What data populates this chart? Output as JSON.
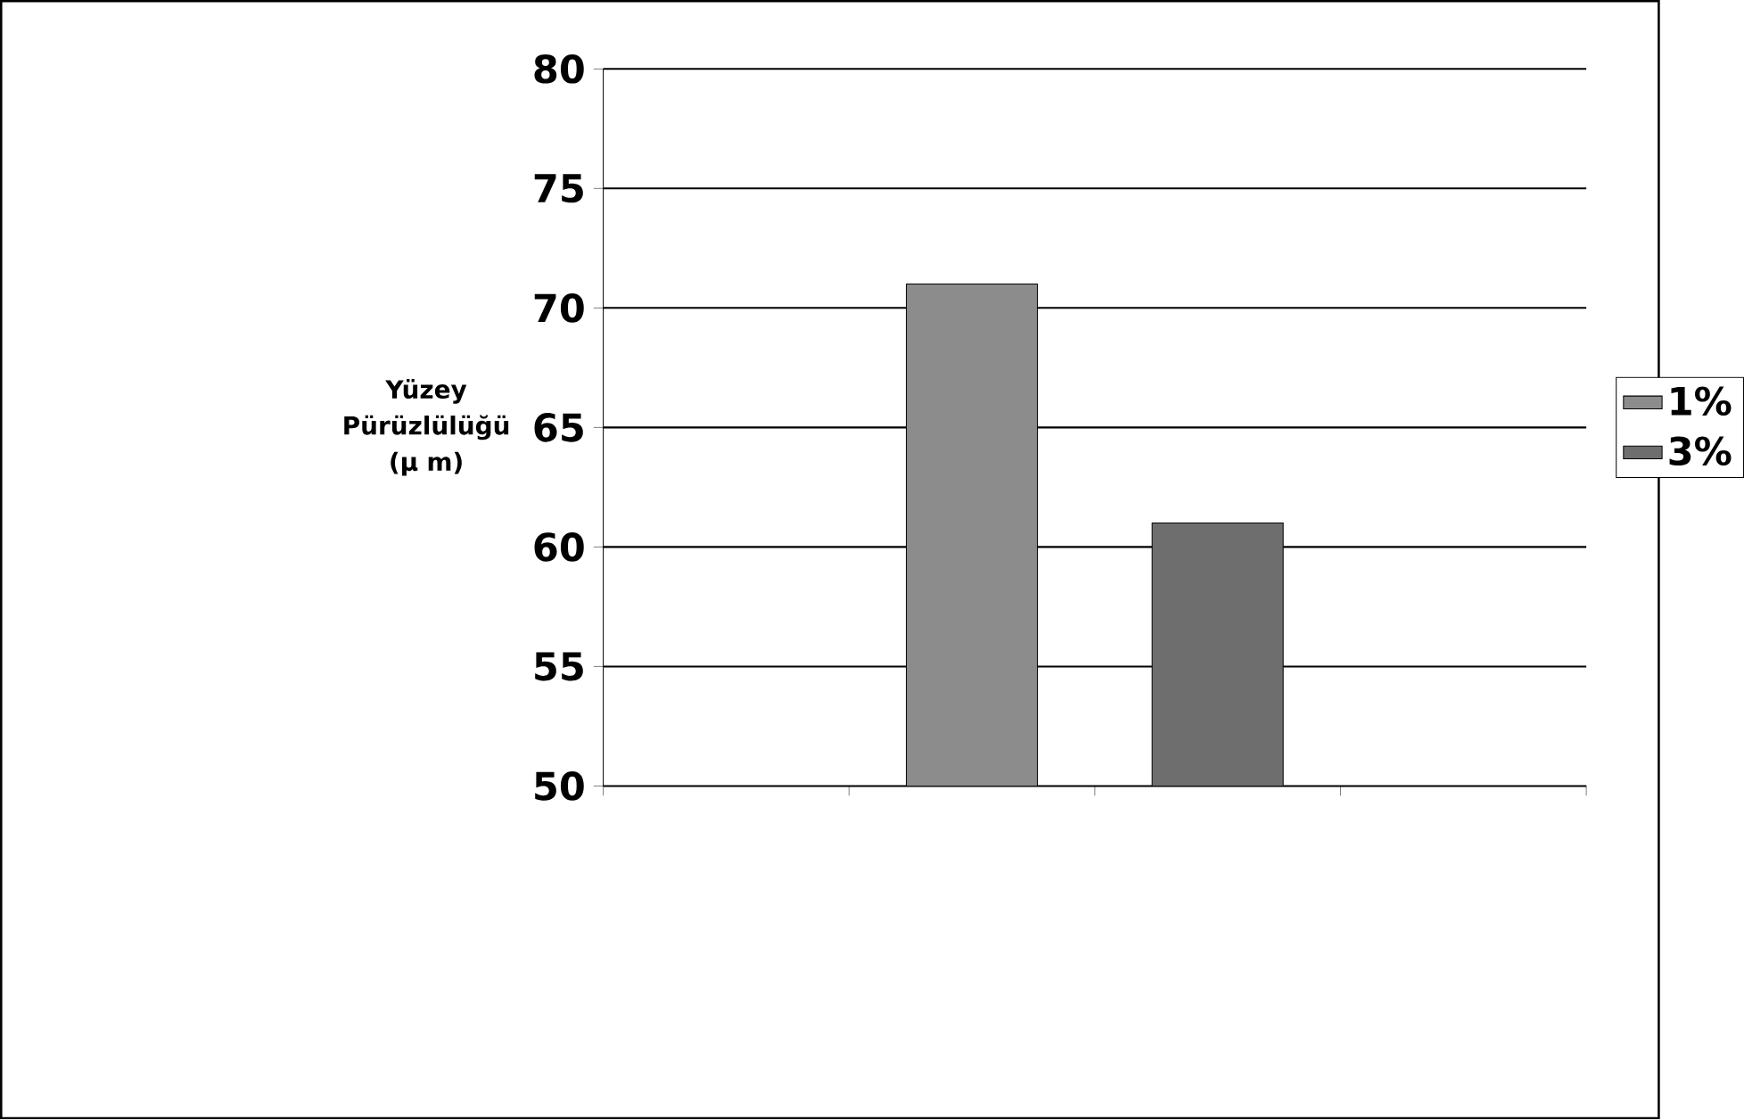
{
  "chart_data": {
    "type": "bar",
    "ylabel": "Yüzey Pürüzlülüğü (µ m)",
    "categories": [
      null,
      null,
      null,
      null
    ],
    "series": [
      {
        "name": "1%",
        "color": "#8c8c8c",
        "values": [
          null,
          71,
          null,
          null
        ]
      },
      {
        "name": "3%",
        "color": "#6e6e6e",
        "values": [
          null,
          null,
          61,
          null
        ]
      }
    ],
    "ylim": [
      50,
      80
    ],
    "yticks": [
      50,
      55,
      60,
      65,
      70,
      75,
      80
    ],
    "grid": "y",
    "legend": "right",
    "tick_labels": "y"
  }
}
